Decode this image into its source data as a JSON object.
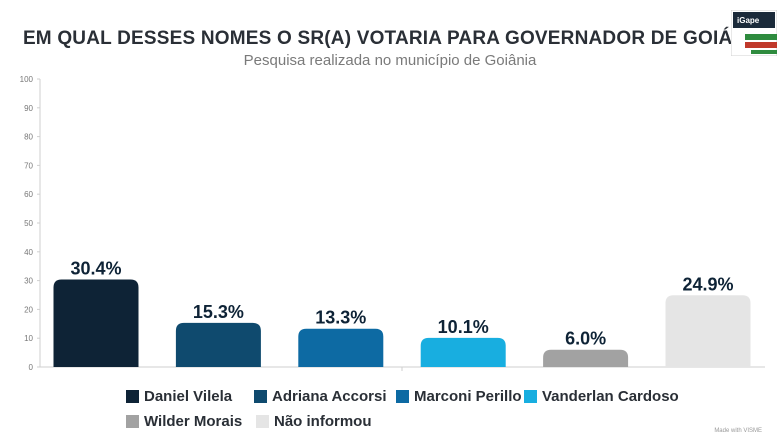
{
  "header": {
    "title": "EM QUAL DESSES NOMES O SR(A) VOTARIA PARA GOVERNADOR DE GOIÁS?",
    "subtitle": "Pesquisa realizada no município de Goiânia"
  },
  "logo": {
    "text": "iGape",
    "colors": [
      "#1b2a3a",
      "#2e8b3e",
      "#c0392b",
      "#ffffff"
    ]
  },
  "footer": "Made with VISME",
  "chart_data": {
    "type": "bar",
    "title": "EM QUAL DESSES NOMES O SR(A) VOTARIA PARA GOVERNADOR DE GOIÁS?",
    "subtitle": "Pesquisa realizada no município de Goiânia",
    "categories": [
      "Daniel Vilela",
      "Adriana Accorsi",
      "Marconi Perillo",
      "Vanderlan Cardoso",
      "Wilder Morais",
      "Não informou"
    ],
    "values": [
      30.4,
      15.3,
      13.3,
      10.1,
      6.0,
      24.9
    ],
    "labels": [
      "30.4%",
      "15.3%",
      "13.3%",
      "10.1%",
      "6.0%",
      "24.9%"
    ],
    "colors": [
      "#0e2336",
      "#0f4a6e",
      "#0d6aa3",
      "#18aee0",
      "#a2a2a2",
      "#e5e5e5"
    ],
    "ylim": [
      0,
      100
    ],
    "yticks": [
      0,
      10,
      20,
      30,
      40,
      50,
      60,
      70,
      80,
      90,
      100
    ],
    "ytick_labels": [
      "0",
      "10",
      "20",
      "30",
      "40",
      "50",
      "60",
      "70",
      "80",
      "90",
      "100"
    ],
    "xlabel": "",
    "ylabel": "",
    "legend": "bottom",
    "grid": false
  }
}
